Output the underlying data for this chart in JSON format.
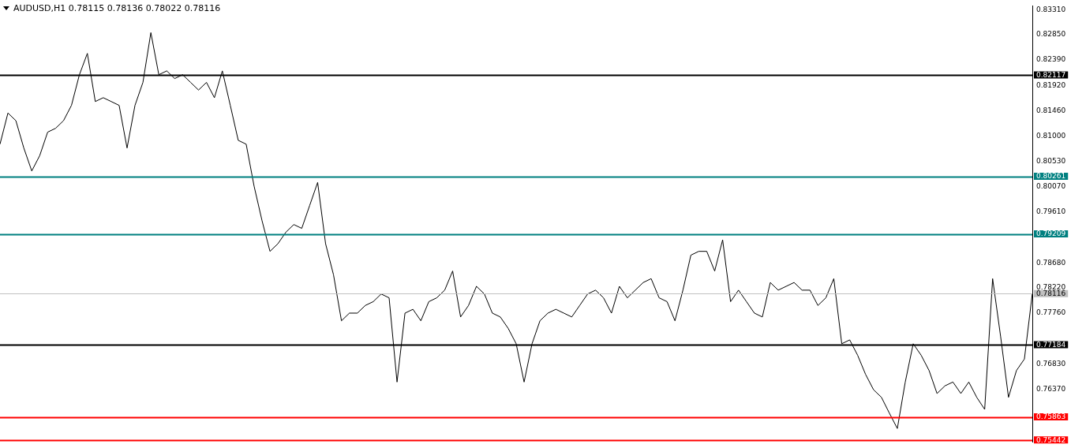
{
  "chart_data": {
    "type": "line",
    "title": "AUDUSD,H1  0.78115 0.78136 0.78022 0.78116",
    "categories": [
      null,
      null,
      null,
      null,
      null,
      null,
      null,
      null,
      null,
      null,
      null,
      null,
      null,
      null,
      null,
      null,
      null,
      null,
      null,
      null,
      null,
      null,
      null,
      null,
      null,
      null,
      null,
      null,
      null,
      null,
      null,
      null,
      null,
      null,
      null,
      null,
      null,
      null,
      null,
      null,
      null,
      null,
      null,
      null,
      null,
      null,
      null,
      null,
      null,
      null,
      null,
      null,
      null,
      null,
      null,
      null,
      null,
      null,
      null,
      null,
      null,
      null,
      null,
      null,
      null,
      null,
      null,
      null,
      null,
      null,
      null,
      null,
      null,
      null,
      null,
      null,
      null,
      null,
      null,
      null,
      null,
      null,
      null,
      null,
      null,
      null,
      null,
      null,
      null,
      null,
      null,
      null,
      null,
      null,
      null,
      null,
      null,
      null,
      null,
      null,
      null,
      null,
      null,
      null,
      null,
      null,
      null,
      null,
      null,
      null,
      null,
      null,
      null,
      null,
      null,
      null,
      null,
      null,
      null,
      null,
      null,
      null,
      null,
      null,
      null,
      null,
      null,
      null,
      null,
      null,
      null
    ],
    "series": [
      {
        "color": "#000000",
        "values": [
          0.8085,
          0.8142,
          0.8128,
          0.8078,
          0.8036,
          0.8064,
          0.8107,
          0.8114,
          0.8128,
          0.8156,
          0.8212,
          0.8251,
          0.8163,
          0.817,
          0.8163,
          0.8156,
          0.8078,
          0.8156,
          0.8198,
          0.8289,
          0.8212,
          0.8219,
          0.8205,
          0.8212,
          0.8198,
          0.8184,
          0.8198,
          0.817,
          0.8219,
          0.8156,
          0.8092,
          0.8085,
          0.8008,
          0.7945,
          0.7889,
          0.7903,
          0.7924,
          0.7938,
          0.7931,
          0.7973,
          0.8015,
          0.7903,
          0.7846,
          0.7762,
          0.7776,
          0.7776,
          0.779,
          0.7797,
          0.7811,
          0.7804,
          0.765,
          0.7776,
          0.7783,
          0.7762,
          0.7797,
          0.7804,
          0.7818,
          0.7853,
          0.7769,
          0.779,
          0.7825,
          0.7811,
          0.7776,
          0.7769,
          0.7748,
          0.772,
          0.765,
          0.772,
          0.7762,
          0.7776,
          0.7783,
          0.7776,
          0.7769,
          0.779,
          0.7811,
          0.7818,
          0.7804,
          0.7776,
          0.7825,
          0.7804,
          0.7818,
          0.7832,
          0.7839,
          0.7804,
          0.7797,
          0.7762,
          0.7818,
          0.7882,
          0.7889,
          0.7889,
          0.7853,
          0.791,
          0.7797,
          0.7818,
          0.7797,
          0.7776,
          0.7769,
          0.7832,
          0.7818,
          0.7825,
          0.7832,
          0.7818,
          0.7818,
          0.779,
          0.7804,
          0.7839,
          0.772,
          0.7727,
          0.7699,
          0.7664,
          0.7636,
          0.7622,
          0.7593,
          0.7565,
          0.765,
          0.772,
          0.7699,
          0.7671,
          0.7629,
          0.7643,
          0.765,
          0.7629,
          0.765,
          0.7622,
          0.76,
          0.7839,
          0.7734,
          0.7622,
          0.7671,
          0.7692,
          0.7812
        ]
      }
    ],
    "ylim": [
      0.754,
      0.8338
    ],
    "yticks": [
      {
        "value": 0.8331,
        "label": "0.83310"
      },
      {
        "value": 0.8285,
        "label": "0.82850"
      },
      {
        "value": 0.8239,
        "label": "0.82390"
      },
      {
        "value": 0.8192,
        "label": "0.81920"
      },
      {
        "value": 0.8146,
        "label": "0.81460"
      },
      {
        "value": 0.81,
        "label": "0.81000"
      },
      {
        "value": 0.8053,
        "label": "0.80530"
      },
      {
        "value": 0.8007,
        "label": "0.80070"
      },
      {
        "value": 0.7961,
        "label": "0.79610"
      },
      {
        "value": 0.7868,
        "label": "0.78680"
      },
      {
        "value": 0.7822,
        "label": "0.78220"
      },
      {
        "value": 0.7776,
        "label": "0.77760"
      },
      {
        "value": 0.7683,
        "label": "0.76830"
      },
      {
        "value": 0.7637,
        "label": "0.76370"
      }
    ],
    "tick_labels": "y",
    "grid": false,
    "legend": false,
    "marker": "none",
    "line_style": "solid",
    "ref_lines": [
      {
        "axis": "y",
        "value": 0.82117,
        "label": "0.82117",
        "color": "#000000"
      },
      {
        "axis": "y",
        "value": 0.80261,
        "label": "0.80261",
        "color": "#008080"
      },
      {
        "axis": "y",
        "value": 0.79209,
        "label": "0.79209",
        "color": "#008080"
      },
      {
        "axis": "y",
        "value": 0.78116,
        "label": "0.78116",
        "color": "#c0c0c0"
      },
      {
        "axis": "y",
        "value": 0.77184,
        "label": "0.77184",
        "color": "#000000"
      },
      {
        "axis": "y",
        "value": 0.75863,
        "label": "0.75863",
        "color": "#ff0000"
      },
      {
        "axis": "y",
        "value": 0.75442,
        "label": "0.75442",
        "color": "#ff0000"
      }
    ]
  }
}
